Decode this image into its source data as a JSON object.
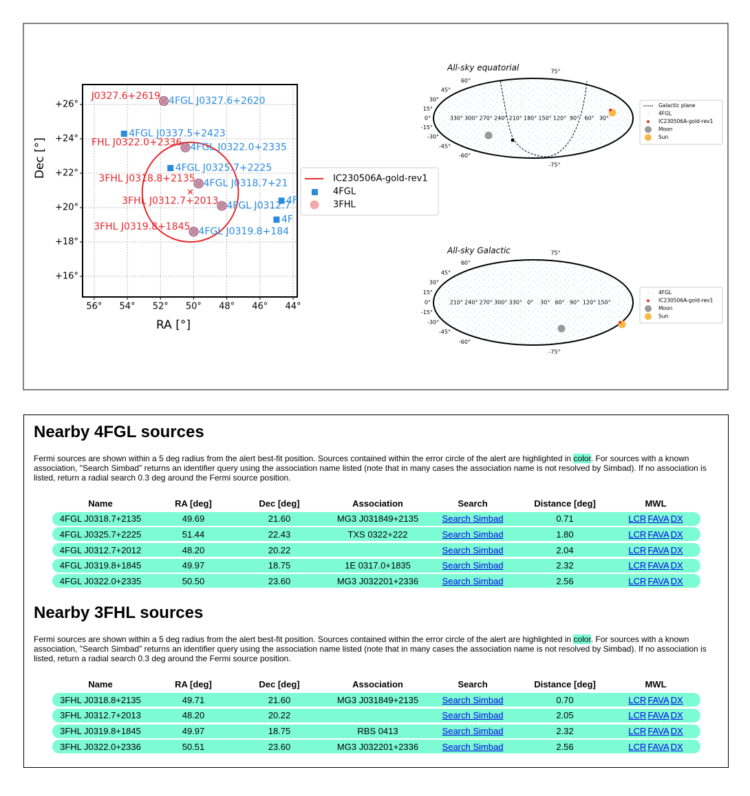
{
  "skymap": {
    "ylabel": "Dec [°]",
    "xlabel": "RA [°]",
    "xlim": [
      56.7,
      43.75
    ],
    "ylim": [
      14.8,
      27.16
    ],
    "grid": true,
    "xticks": [
      {
        "value": 56,
        "label": "56°"
      },
      {
        "value": 54,
        "label": "54°"
      },
      {
        "value": 52,
        "label": "52°"
      },
      {
        "value": 50,
        "label": "50°"
      },
      {
        "value": 48,
        "label": "48°"
      },
      {
        "value": 46,
        "label": "46°"
      },
      {
        "value": 44,
        "label": "44°"
      }
    ],
    "yticks": [
      {
        "value": 16,
        "label": "+16°"
      },
      {
        "value": 18,
        "label": "+18°"
      },
      {
        "value": 20,
        "label": "+20°"
      },
      {
        "value": 22,
        "label": "+22°"
      },
      {
        "value": 24,
        "label": "+24°"
      },
      {
        "value": 26,
        "label": "+26°"
      }
    ],
    "alert": {
      "name": "IC230506A-gold-rev1",
      "ra": 50.2,
      "dec": 20.9,
      "radius": 2.9,
      "color": "#e8262a"
    },
    "series": [
      {
        "name": "4FGL",
        "color": "#2a8ae0",
        "points": [
          {
            "label": "4FGL J0327.6+2620",
            "ra": 51.8,
            "dec": 26.2
          },
          {
            "label": "4FGL J0337.5+2423",
            "ra": 54.2,
            "dec": 24.3
          },
          {
            "label": "4FGL J0322.0+2335",
            "ra": 50.5,
            "dec": 23.5
          },
          {
            "label": "4FGL J0325.7+2225",
            "ra": 51.4,
            "dec": 22.3
          },
          {
            "label": "4FGL J0318.7+21",
            "ra": 49.7,
            "dec": 21.4
          },
          {
            "label": "4FGL J0312.7",
            "ra": 48.3,
            "dec": 20.1
          },
          {
            "label": "4F",
            "ra": 44.7,
            "dec": 20.4
          },
          {
            "label": "4F",
            "ra": 45.0,
            "dec": 19.3
          },
          {
            "label": "4FGL J0319.8+184",
            "ra": 50.0,
            "dec": 18.6
          }
        ]
      },
      {
        "name": "3FHL",
        "color": "#f08c8c",
        "points": [
          {
            "label": "J0327.6+2619",
            "ra": 51.8,
            "dec": 26.2
          },
          {
            "label": "FHL J0322.0+2336",
            "ra": 50.5,
            "dec": 23.5
          },
          {
            "label": "3FHL J0318.8+2135",
            "ra": 49.7,
            "dec": 21.4
          },
          {
            "label": "3FHL J0312.7+2013",
            "ra": 48.3,
            "dec": 20.1
          },
          {
            "label": "3FHL J0319.8+1845",
            "ra": 50.0,
            "dec": 18.6
          }
        ]
      }
    ]
  },
  "allsky_equatorial": {
    "title": "All-sky equatorial",
    "lat_labels": [
      "75°",
      "60°",
      "45°",
      "30°",
      "15°",
      "0°",
      "-15°",
      "-30°",
      "-45°",
      "-60°",
      "-75°"
    ],
    "lon_labels": [
      "330°",
      "300°",
      "270°",
      "240°",
      "210°",
      "180°",
      "150°",
      "120°",
      "90°",
      "60°",
      "30°"
    ],
    "legend": [
      "Galactic plane",
      "4FGL",
      "IC230506A-gold-rev1",
      "Moon",
      "Sun"
    ]
  },
  "allsky_galactic": {
    "title": "All-sky Galactic",
    "lat_labels": [
      "75°",
      "60°",
      "45°",
      "30°",
      "15°",
      "0°",
      "-15°",
      "-30°",
      "-45°",
      "-60°",
      "-75°"
    ],
    "lon_labels": [
      "210°",
      "240°",
      "270°",
      "300°",
      "330°",
      "0°",
      "30°",
      "60°",
      "90°",
      "120°",
      "150°"
    ],
    "legend": [
      "4FGL",
      "IC230506A-gold-rev1",
      "Moon",
      "Sun"
    ]
  },
  "sections": [
    {
      "heading": "Nearby 4FGL sources",
      "text": [
        "Fermi sources are shown within a 5 deg radius from the alert best-fit position. Sources contained within the error circle of the alert are highlighted in ",
        "color",
        ". For sources with a known association, \"Search Simbad\" returns an identifier query using the association name listed (note that in many cases the association name is not resolved by Simbad). If no association is listed, return a radial search 0.3 deg around the Fermi source position."
      ],
      "columns": [
        "Name",
        "RA [deg]",
        "Dec [deg]",
        "Association",
        "Search",
        "Distance [deg]",
        "MWL"
      ],
      "rows": [
        [
          "4FGL J0318.7+2135",
          "49.69",
          "21.60",
          "MG3 J031849+2135",
          "Search Simbad",
          "0.71",
          [
            "LCR",
            "FAVA",
            "DX"
          ]
        ],
        [
          "4FGL J0325.7+2225",
          "51.44",
          "22.43",
          "TXS 0322+222",
          "Search Simbad",
          "1.80",
          [
            "LCR",
            "FAVA",
            "DX"
          ]
        ],
        [
          "4FGL J0312.7+2012",
          "48.20",
          "20.22",
          "",
          "Search Simbad",
          "2.04",
          [
            "LCR",
            "FAVA",
            "DX"
          ]
        ],
        [
          "4FGL J0319.8+1845",
          "49.97",
          "18.75",
          "1E 0317.0+1835",
          "Search Simbad",
          "2.32",
          [
            "LCR",
            "FAVA",
            "DX"
          ]
        ],
        [
          "4FGL J0322.0+2335",
          "50.50",
          "23.60",
          "MG3 J032201+2336",
          "Search Simbad",
          "2.56",
          [
            "LCR",
            "FAVA",
            "DX"
          ]
        ]
      ]
    },
    {
      "heading": "Nearby 3FHL sources",
      "text": [
        "Fermi sources are shown within a 5 deg radius from the alert best-fit position. Sources contained within the error circle of the alert are highlighted in ",
        "color",
        ". For sources with a known association, \"Search Simbad\" returns an identifier query using the association name listed (note that in many cases the association name is not resolved by Simbad). If no association is listed, return a radial search 0.3 deg around the Fermi source position."
      ],
      "columns": [
        "Name",
        "RA [deg]",
        "Dec [deg]",
        "Association",
        "Search",
        "Distance [deg]",
        "MWL"
      ],
      "rows": [
        [
          "3FHL J0318.8+2135",
          "49.71",
          "21.60",
          "MG3 J031849+2135",
          "Search Simbad",
          "0.70",
          [
            "LCR",
            "FAVA",
            "DX"
          ]
        ],
        [
          "3FHL J0312.7+2013",
          "48.20",
          "20.22",
          "",
          "Search Simbad",
          "2.05",
          [
            "LCR",
            "FAVA",
            "DX"
          ]
        ],
        [
          "3FHL J0319.8+1845",
          "49.97",
          "18.75",
          "RBS 0413",
          "Search Simbad",
          "2.32",
          [
            "LCR",
            "FAVA",
            "DX"
          ]
        ],
        [
          "3FHL J0322.0+2336",
          "50.51",
          "23.60",
          "MG3 J032201+2336",
          "Search Simbad",
          "2.56",
          [
            "LCR",
            "FAVA",
            "DX"
          ]
        ]
      ]
    }
  ]
}
